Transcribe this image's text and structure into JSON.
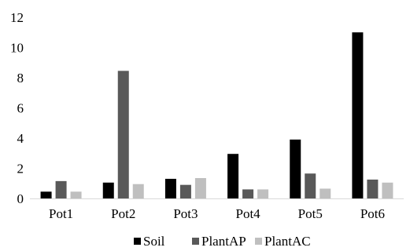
{
  "chart_data": {
    "type": "bar",
    "categories": [
      "Pot1",
      "Pot2",
      "Pot3",
      "Pot4",
      "Pot5",
      "Pot6"
    ],
    "series": [
      {
        "name": "Soil",
        "color": "#000000",
        "values": [
          0.45,
          1.05,
          1.3,
          2.95,
          3.9,
          11.0
        ]
      },
      {
        "name": "PlantAP",
        "color": "#595959",
        "values": [
          1.15,
          8.45,
          0.9,
          0.6,
          1.65,
          1.25
        ]
      },
      {
        "name": "PlantAC",
        "color": "#bfbfbf",
        "values": [
          0.45,
          0.95,
          1.35,
          0.6,
          0.65,
          1.05
        ]
      }
    ],
    "yticks": [
      "0",
      "2",
      "4",
      "6",
      "8",
      "10",
      "12"
    ],
    "ylim": [
      0,
      12
    ],
    "grid": false,
    "legend_position": "bottom"
  }
}
